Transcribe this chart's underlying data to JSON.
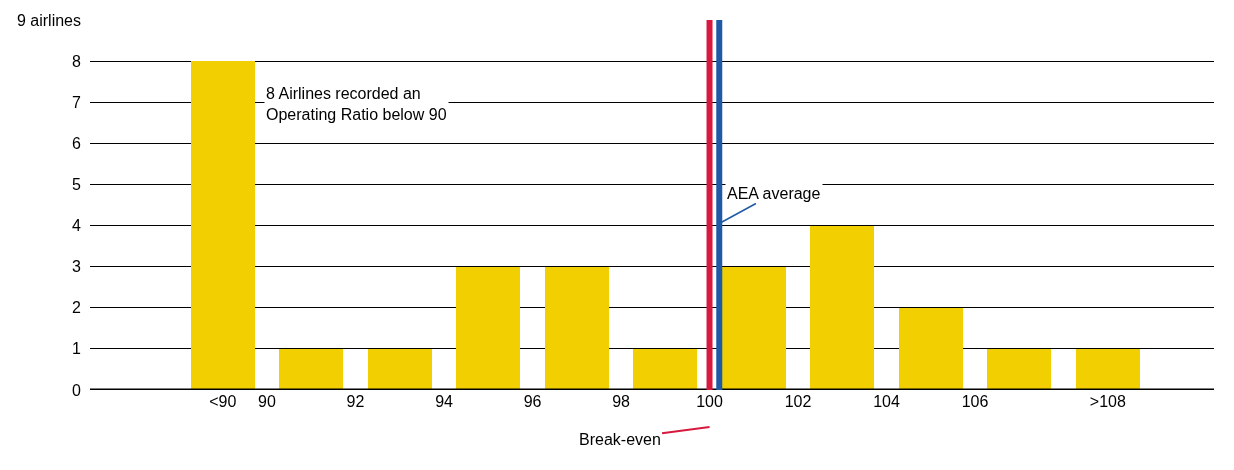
{
  "chart_data": {
    "type": "bar",
    "x": [
      89,
      91,
      93,
      95,
      97,
      99,
      101,
      103,
      105,
      107,
      109
    ],
    "values": [
      8,
      1,
      1,
      3,
      3,
      1,
      3,
      4,
      2,
      1,
      1
    ],
    "color": "#f2cf00",
    "xlim": [
      86,
      111.4
    ],
    "xticks": [
      {
        "value": 89,
        "label": "<90"
      },
      90,
      92,
      94,
      96,
      98,
      100,
      102,
      104,
      106,
      {
        "value": 109,
        "label": ">108"
      }
    ],
    "ylim": [
      0,
      9
    ],
    "yticks": [
      0,
      1,
      2,
      3,
      4,
      5,
      6,
      7,
      8,
      {
        "value": 9,
        "label": "9 airlines"
      }
    ],
    "grid": "y",
    "ref_lines": [
      {
        "axis": "x",
        "value": 100,
        "label": "Break-even",
        "color": "#d7193f"
      },
      {
        "axis": "x",
        "value": 100.22,
        "label": "AEA average",
        "color": "#1f5aa6"
      }
    ],
    "annotations": [
      "8 Airlines recorded an Operating Ratio below 90"
    ]
  }
}
